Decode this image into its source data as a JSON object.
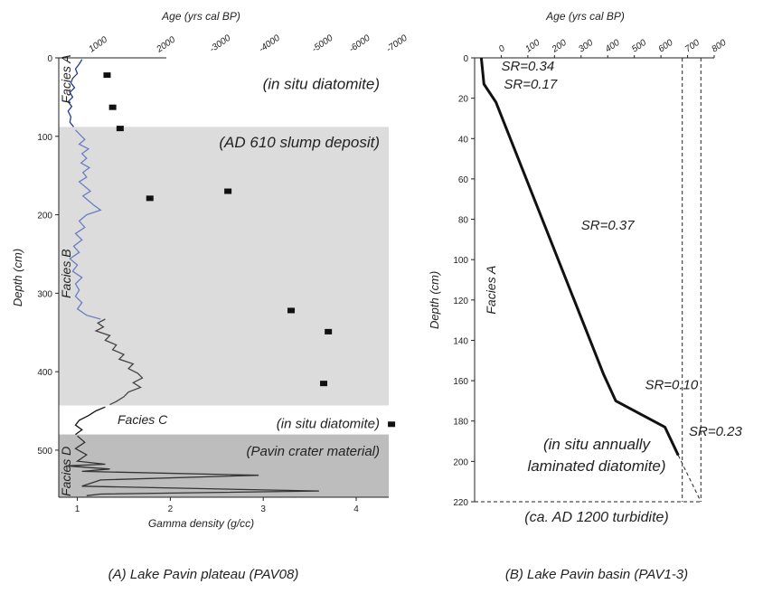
{
  "chart_data": [
    {
      "type": "line",
      "panel_caption": "(A) Lake Pavin plateau (PAV08)",
      "xlabel_bottom": "Gamma density (g/cc)",
      "xlabel_top": "Age (yrs cal BP)",
      "ylabel": "Depth (cm)",
      "xlim_bottom": [
        0.8,
        4.35
      ],
      "xticks_bottom": [
        "1",
        "2",
        "3",
        "4"
      ],
      "top_ticks": [
        {
          "label": "1000",
          "density": 1.15
        },
        {
          "label": "2000",
          "density": 1.88
        },
        {
          "label": "-3000",
          "density": 2.45
        },
        {
          "label": "-4000",
          "density": 2.98
        },
        {
          "label": "-5000",
          "density": 3.55
        },
        {
          "label": "-6000",
          "density": 3.95
        },
        {
          "label": "-7000",
          "density": 4.35
        }
      ],
      "ylim": [
        0,
        560
      ],
      "yticks": [
        "0",
        "100",
        "200",
        "300",
        "400",
        "500"
      ],
      "shaded_zones": [
        {
          "from": 88,
          "to": 443,
          "color": "#dcdcdc"
        },
        {
          "from": 480,
          "to": 560,
          "color": "#bdbdbd"
        }
      ],
      "facies": [
        {
          "label": "Facies A",
          "depth": 27
        },
        {
          "label": "Facies B",
          "depth": 275
        },
        {
          "label": "Facies C",
          "depth": 463
        },
        {
          "label": "Facies D",
          "depth": 527
        }
      ],
      "annotations": [
        {
          "text": "(in situ diatomite)",
          "depth": 33
        },
        {
          "text": "(AD 610 slump deposit)",
          "depth": 107
        },
        {
          "text": "(in situ diatomite)",
          "depth": 465
        },
        {
          "text": "(Pavin crater material)",
          "depth": 500
        }
      ],
      "age_points": [
        {
          "density": 1.32,
          "depth": 22
        },
        {
          "density": 1.38,
          "depth": 63
        },
        {
          "density": 1.46,
          "depth": 90
        },
        {
          "density": 1.78,
          "depth": 179
        },
        {
          "density": 2.62,
          "depth": 170
        },
        {
          "density": 3.3,
          "depth": 322
        },
        {
          "density": 3.7,
          "depth": 349
        },
        {
          "density": 3.65,
          "depth": 415
        },
        {
          "density": 4.38,
          "depth": 467
        }
      ],
      "gamma_segments": [
        {
          "color": "#1f3a93",
          "points": [
            [
              1.05,
              2
            ],
            [
              1.02,
              8
            ],
            [
              0.98,
              14
            ],
            [
              1.0,
              20
            ],
            [
              0.95,
              26
            ],
            [
              0.93,
              32
            ],
            [
              0.97,
              38
            ],
            [
              0.92,
              44
            ],
            [
              0.95,
              50
            ],
            [
              0.9,
              56
            ],
            [
              0.94,
              62
            ],
            [
              0.9,
              68
            ],
            [
              0.93,
              75
            ],
            [
              0.92,
              82
            ],
            [
              0.96,
              88
            ]
          ]
        },
        {
          "color": "#6a7fc2",
          "points": [
            [
              0.98,
              92
            ],
            [
              1.03,
              98
            ],
            [
              1.08,
              104
            ],
            [
              1.02,
              110
            ],
            [
              1.12,
              116
            ],
            [
              1.05,
              122
            ],
            [
              1.1,
              128
            ],
            [
              1.04,
              134
            ],
            [
              1.13,
              140
            ],
            [
              1.06,
              146
            ],
            [
              1.1,
              152
            ],
            [
              1.02,
              158
            ],
            [
              1.08,
              164
            ],
            [
              1.14,
              170
            ],
            [
              1.06,
              176
            ],
            [
              1.12,
              182
            ],
            [
              1.18,
              188
            ],
            [
              1.25,
              194
            ],
            [
              1.1,
              200
            ],
            [
              1.02,
              208
            ],
            [
              1.08,
              216
            ],
            [
              0.98,
              224
            ],
            [
              1.05,
              232
            ],
            [
              0.96,
              240
            ],
            [
              1.02,
              248
            ],
            [
              0.92,
              256
            ],
            [
              1.0,
              264
            ],
            [
              0.95,
              272
            ],
            [
              1.05,
              280
            ],
            [
              0.98,
              288
            ],
            [
              1.02,
              296
            ],
            [
              0.98,
              304
            ],
            [
              1.05,
              312
            ],
            [
              1.0,
              320
            ],
            [
              1.1,
              328
            ],
            [
              1.25,
              333
            ]
          ]
        },
        {
          "color": "#444444",
          "points": [
            [
              1.3,
              333
            ],
            [
              1.22,
              338
            ],
            [
              1.28,
              343
            ],
            [
              1.2,
              348
            ],
            [
              1.35,
              354
            ],
            [
              1.3,
              360
            ],
            [
              1.42,
              366
            ],
            [
              1.38,
              372
            ],
            [
              1.5,
              378
            ],
            [
              1.45,
              384
            ],
            [
              1.6,
              390
            ],
            [
              1.55,
              396
            ],
            [
              1.65,
              402
            ],
            [
              1.7,
              408
            ],
            [
              1.6,
              414
            ],
            [
              1.68,
              420
            ],
            [
              1.55,
              426
            ],
            [
              1.5,
              432
            ],
            [
              1.42,
              438
            ],
            [
              1.35,
              442
            ]
          ]
        },
        {
          "color": "#111111",
          "points": [
            [
              1.3,
              445
            ],
            [
              1.2,
              450
            ],
            [
              1.12,
              456
            ],
            [
              1.02,
              462
            ],
            [
              0.98,
              468
            ],
            [
              1.05,
              474
            ],
            [
              0.98,
              480
            ]
          ]
        },
        {
          "color": "#333333",
          "points": [
            [
              1.0,
              482
            ],
            [
              1.08,
              490
            ],
            [
              0.98,
              498
            ],
            [
              1.1,
              506
            ],
            [
              1.0,
              514
            ],
            [
              1.3,
              518
            ],
            [
              0.88,
              520
            ],
            [
              1.35,
              524
            ],
            [
              1.05,
              527
            ],
            [
              2.95,
              532
            ],
            [
              1.25,
              538
            ],
            [
              1.05,
              546
            ],
            [
              3.6,
              552
            ],
            [
              1.25,
              556
            ],
            [
              1.1,
              558
            ]
          ]
        }
      ]
    },
    {
      "type": "line",
      "panel_caption": "(B) Lake Pavin basin (PAV1-3)",
      "xlabel_top": "Age (yrs cal BP)",
      "ylabel": "Depth (cm)",
      "xlim": [
        -100,
        800
      ],
      "xticks": [
        "0",
        "100",
        "200",
        "300",
        "400",
        "500",
        "600",
        "700",
        "800"
      ],
      "ylim": [
        0,
        220
      ],
      "yticks": [
        "0",
        "20",
        "40",
        "60",
        "80",
        "100",
        "120",
        "140",
        "160",
        "180",
        "200",
        "220"
      ],
      "age_model": [
        [
          -75,
          0
        ],
        [
          -65,
          13
        ],
        [
          -20,
          22
        ],
        [
          385,
          157
        ],
        [
          430,
          170
        ],
        [
          615,
          183
        ],
        [
          665,
          197
        ]
      ],
      "dashed_lines": [
        {
          "points": [
            [
              680,
              0
            ],
            [
              680,
              220
            ]
          ]
        },
        {
          "points": [
            [
              750,
              0
            ],
            [
              750,
              220
            ]
          ]
        },
        {
          "points": [
            [
              665,
              197
            ],
            [
              750,
              220
            ]
          ]
        },
        {
          "points": [
            [
              -100,
              220
            ],
            [
              750,
              220
            ]
          ]
        }
      ],
      "labels": [
        {
          "text": "SR=0.34",
          "x": 0,
          "y": 4
        },
        {
          "text": "SR=0.17",
          "x": 10,
          "y": 13
        },
        {
          "text": "SR=0.37",
          "x": 300,
          "y": 83
        },
        {
          "text": "SR=0.10",
          "x": 540,
          "y": 162
        },
        {
          "text": "SR=0.23",
          "x": 705,
          "y": 185
        }
      ],
      "facies_label": "Facies A",
      "annotation_line1": "(in situ annually",
      "annotation_line2": "laminated diatomite)",
      "turbidite_label": "(ca. AD 1200 turbidite)"
    }
  ]
}
